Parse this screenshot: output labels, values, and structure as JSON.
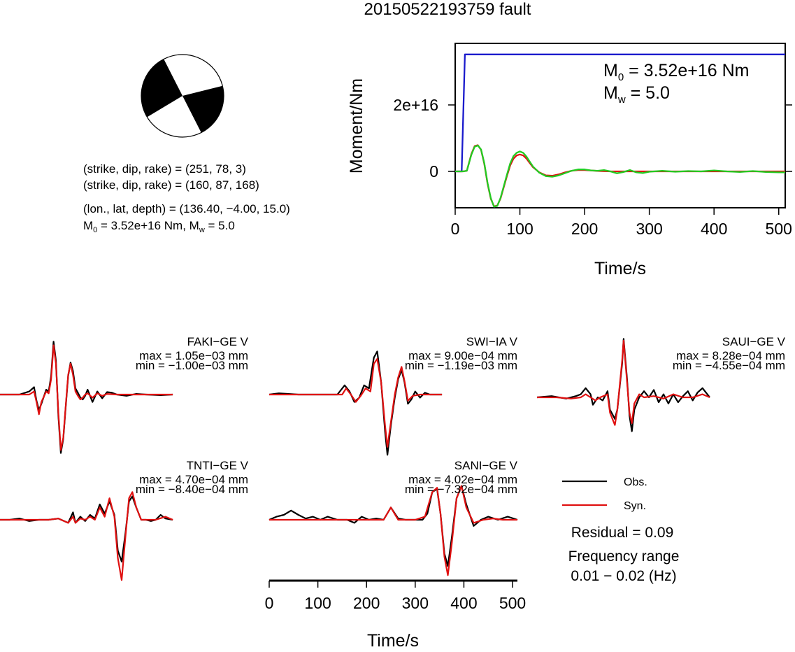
{
  "title": "20150522193759 fault",
  "mechanism": {
    "line1": "(strike, dip, rake) = (251, 78, 3)",
    "line2": "(strike, dip, rake) = (160, 87, 168)",
    "line3": "(lon., lat, depth) = (136.40, −4.00, 15.0)",
    "m0_label": "M",
    "m0_sub": "0",
    "m0_text": " = 3.52e+16 Nm, M",
    "mw_sub": "w",
    "mw_text": " = 5.0"
  },
  "stf": {
    "ylabel": "Moment/Nm",
    "xlabel": "Time/s",
    "m0_main": "M",
    "m0_sub": "0",
    "m0_rest": " = 3.52e+16 Nm",
    "mw_main": "M",
    "mw_sub": "w",
    "mw_rest": " = 5.0"
  },
  "waveforms": {
    "xlabel": "Time/s",
    "stations": [
      {
        "name": "FAKI−GE V",
        "max": "max = 1.05e−03 mm",
        "min": "min = −1.00e−03 mm"
      },
      {
        "name": "SWI−IA V",
        "max": "max = 9.00e−04 mm",
        "min": "min = −1.19e−03 mm"
      },
      {
        "name": "SAUI−GE V",
        "max": "max = 8.28e−04 mm",
        "min": "min = −4.55e−04 mm"
      },
      {
        "name": "TNTI−GE V",
        "max": "max = 4.70e−04 mm",
        "min": "min = −8.40e−04 mm"
      },
      {
        "name": "SANI−GE V",
        "max": "max = 4.02e−04 mm",
        "min": "min = −7.32e−04 mm"
      }
    ]
  },
  "legend": {
    "obs": "Obs.",
    "syn": "Syn.",
    "residual": "Residual = 0.09",
    "freq_title": "Frequency range",
    "freq_value": "0.01 − 0.02 (Hz)"
  },
  "colors": {
    "observed": "#000000",
    "synthetic": "#e01010",
    "moment_cumulative": "#1a1acc",
    "moment_rate_obs": "#e01010",
    "moment_rate_syn": "#22cc22",
    "beachball_fill": "#000000"
  },
  "chart_data": [
    {
      "type": "line",
      "xlabel": "Time/s",
      "ylabel": "Moment/Nm",
      "xlim": [
        0,
        510
      ],
      "x_ticks": [
        0,
        100,
        200,
        300,
        400,
        500
      ],
      "y_ticks": [
        0,
        2e+16
      ],
      "y_tick_labels": [
        "0",
        "2e+16"
      ],
      "grid": false,
      "series": [
        {
          "x": [
            0,
            10,
            15,
            510
          ],
          "y": [
            0,
            0,
            3.52e+16,
            3.52e+16
          ]
        },
        {
          "x": [
            0,
            12,
            18,
            25,
            30,
            35,
            40,
            45,
            50,
            55,
            60,
            65,
            70,
            75,
            80,
            85,
            90,
            95,
            100,
            105,
            110,
            115,
            120,
            130,
            140,
            150,
            160,
            170,
            180,
            190,
            200,
            210,
            220,
            230,
            240,
            250,
            260,
            270,
            280,
            290,
            300,
            320,
            340,
            360,
            380,
            400,
            420,
            440,
            460,
            480,
            500,
            510
          ],
          "y": [
            0,
            0,
            200000000000000.0,
            5000000000000000.0,
            7400000000000000.0,
            7800000000000000.0,
            6600000000000000.0,
            2500000000000000.0,
            -3500000000000000.0,
            -8000000000000000.0,
            -1.06e+16,
            -1.04e+16,
            -8000000000000000.0,
            -4500000000000000.0,
            -1000000000000000.0,
            2400000000000000.0,
            4600000000000000.0,
            5600000000000000.0,
            6000000000000000.0,
            5600000000000000.0,
            4500000000000000.0,
            3000000000000000.0,
            1500000000000000.0,
            -400000000000000.0,
            -1400000000000000.0,
            -1600000000000000.0,
            -1200000000000000.0,
            -500000000000000.0,
            200000000000000.0,
            600000000000000.0,
            600000000000000.0,
            300000000000000.0,
            200000000000000.0,
            400000000000000.0,
            0,
            -600000000000000.0,
            -200000000000000.0,
            400000000000000.0,
            -300000000000000.0,
            -500000000000000.0,
            -100000000000000.0,
            200000000000000.0,
            -100000000000000.0,
            100000000000000.0,
            0,
            300000000000000.0,
            0,
            -200000000000000.0,
            100000000000000.0,
            -200000000000000.0,
            -300000000000000.0,
            -300000000000000.0
          ]
        },
        {
          "x": [
            0,
            12,
            18,
            25,
            30,
            35,
            40,
            45,
            50,
            55,
            60,
            65,
            70,
            75,
            80,
            85,
            90,
            95,
            100,
            105,
            110,
            115,
            120,
            130,
            140,
            150,
            160,
            170,
            180,
            190,
            200,
            220,
            240,
            260,
            280,
            300,
            350,
            400,
            450,
            510
          ],
          "y": [
            0,
            0,
            200000000000000.0,
            5200000000000000.0,
            7600000000000000.0,
            7900000000000000.0,
            6500000000000000.0,
            2300000000000000.0,
            -3700000000000000.0,
            -8200000000000000.0,
            -1.05e+16,
            -1.03e+16,
            -8200000000000000.0,
            -4800000000000000.0,
            -1400000000000000.0,
            1800000000000000.0,
            3800000000000000.0,
            4800000000000000.0,
            5100000000000000.0,
            4800000000000000.0,
            3900000000000000.0,
            2600000000000000.0,
            1300000000000000.0,
            -300000000000000.0,
            -1200000000000000.0,
            -1300000000000000.0,
            -900000000000000.0,
            -300000000000000.0,
            200000000000000.0,
            400000000000000.0,
            400000000000000.0,
            150000000000000.0,
            0,
            0,
            0,
            0,
            0,
            0,
            0,
            0
          ]
        }
      ]
    },
    {
      "type": "line",
      "xlabel": "Time/s",
      "xlim": [
        0,
        510
      ],
      "x_ticks": [
        0,
        100,
        200,
        300,
        400,
        500
      ],
      "panels": [
        {
          "station": "FAKI−GE V",
          "obs_x": [
            0,
            40,
            60,
            70,
            75,
            80,
            85,
            95,
            100,
            105,
            110,
            115,
            120,
            125,
            130,
            135,
            140,
            145,
            150,
            155,
            160,
            165,
            170,
            175,
            180,
            190,
            200,
            210,
            220,
            230,
            240,
            260,
            280,
            300,
            330,
            355
          ],
          "obs_y": [
            0,
            0,
            0.05,
            0.12,
            -0.1,
            -0.25,
            -0.15,
            0.08,
            0.05,
            0.3,
            0.86,
            0.55,
            -0.35,
            -0.95,
            -0.72,
            -0.2,
            0.3,
            0.52,
            0.38,
            0.1,
            0.03,
            -0.05,
            -0.08,
            -0.02,
            0.08,
            -0.12,
            0.05,
            -0.06,
            0.04,
            0.03,
            0.0,
            -0.02,
            0.01,
            0.0,
            -0.01,
            0.0
          ],
          "syn_x": [
            0,
            40,
            60,
            70,
            75,
            80,
            85,
            95,
            100,
            105,
            110,
            115,
            120,
            125,
            130,
            135,
            140,
            145,
            150,
            155,
            160,
            165,
            170,
            175,
            180,
            190,
            200,
            210,
            220,
            240,
            260,
            290,
            320,
            355
          ],
          "syn_y": [
            0,
            0,
            0.0,
            0.05,
            -0.12,
            -0.32,
            -0.12,
            0.05,
            0.02,
            0.25,
            0.8,
            0.5,
            -0.3,
            -0.9,
            -0.7,
            -0.18,
            0.32,
            0.5,
            0.32,
            0.05,
            -0.02,
            -0.08,
            -0.05,
            0.0,
            0.02,
            -0.05,
            0.02,
            -0.02,
            0.01,
            0.0,
            0.0,
            0.0,
            0.0,
            0.0
          ]
        },
        {
          "station": "SWI−IA V",
          "obs_x": [
            0,
            20,
            60,
            100,
            140,
            155,
            165,
            175,
            185,
            195,
            205,
            215,
            222,
            230,
            238,
            243,
            250,
            258,
            265,
            272,
            278,
            285,
            292,
            300,
            310,
            320,
            330,
            340,
            355
          ],
          "obs_y": [
            0,
            0.02,
            0.0,
            0.0,
            0.0,
            0.15,
            0.05,
            -0.12,
            -0.05,
            0.15,
            0.1,
            0.6,
            0.7,
            0.2,
            -0.6,
            -0.98,
            -0.5,
            -0.05,
            0.25,
            0.4,
            0.2,
            -0.15,
            -0.08,
            0.05,
            -0.05,
            0.03,
            0.0,
            0.0,
            0.0
          ],
          "syn_x": [
            0,
            40,
            80,
            120,
            150,
            158,
            168,
            178,
            188,
            198,
            208,
            215,
            222,
            230,
            238,
            243,
            250,
            258,
            265,
            272,
            278,
            285,
            295,
            310,
            330,
            355
          ],
          "syn_y": [
            0,
            0.0,
            0.0,
            0.0,
            0.0,
            0.1,
            0.0,
            -0.12,
            -0.02,
            0.1,
            0.05,
            0.5,
            0.58,
            0.2,
            -0.5,
            -0.85,
            -0.45,
            0.0,
            0.28,
            0.45,
            0.22,
            -0.1,
            -0.02,
            0.0,
            0.0,
            0.0
          ]
        },
        {
          "station": "SAUI−GE V",
          "obs_x": [
            0,
            30,
            60,
            80,
            90,
            100,
            110,
            115,
            125,
            135,
            145,
            150,
            160,
            165,
            175,
            178,
            185,
            190,
            195,
            200,
            210,
            220,
            230,
            240,
            250,
            260,
            270,
            280,
            290,
            300,
            310,
            320,
            330,
            340,
            350,
            355
          ],
          "obs_y": [
            0,
            0.02,
            -0.02,
            0.02,
            0.05,
            0.15,
            0.05,
            -0.12,
            0.0,
            -0.05,
            0.1,
            -0.2,
            -0.35,
            -0.2,
            0.55,
            0.95,
            0.3,
            -0.3,
            -0.55,
            -0.2,
            0.0,
            0.1,
            0.0,
            0.12,
            -0.08,
            0.05,
            -0.1,
            0.05,
            -0.08,
            0.02,
            0.1,
            -0.05,
            0.08,
            0.15,
            0.05,
            0.0
          ],
          "syn_x": [
            0,
            40,
            70,
            90,
            100,
            110,
            120,
            130,
            145,
            150,
            160,
            165,
            175,
            178,
            185,
            190,
            195,
            200,
            210,
            220,
            240,
            260,
            280,
            300,
            320,
            340,
            355
          ],
          "syn_y": [
            0,
            0.0,
            -0.02,
            0.0,
            0.05,
            0.0,
            -0.05,
            0.0,
            0.05,
            -0.25,
            -0.45,
            -0.2,
            0.6,
            0.92,
            0.25,
            -0.25,
            -0.42,
            -0.1,
            0.05,
            0.0,
            0.02,
            -0.02,
            0.05,
            0.0,
            0.0,
            0.05,
            0.0
          ]
        },
        {
          "station": "TNTI−GE V",
          "obs_x": [
            0,
            20,
            40,
            60,
            80,
            100,
            120,
            140,
            150,
            155,
            165,
            175,
            185,
            195,
            205,
            215,
            225,
            235,
            242,
            250,
            258,
            265,
            272,
            280,
            290,
            300,
            310,
            320,
            330,
            340,
            355
          ],
          "obs_y": [
            0,
            0.0,
            0.02,
            -0.02,
            0.0,
            0.0,
            0.02,
            -0.05,
            0.12,
            -0.05,
            0.05,
            -0.02,
            0.08,
            0.02,
            0.25,
            0.1,
            0.3,
            0.08,
            -0.5,
            -0.68,
            -0.2,
            0.3,
            0.38,
            0.2,
            0.0,
            0.0,
            -0.02,
            0.0,
            0.08,
            0.02,
            0.0
          ],
          "syn_x": [
            0,
            20,
            40,
            60,
            80,
            100,
            120,
            140,
            150,
            155,
            165,
            175,
            185,
            195,
            205,
            215,
            225,
            235,
            242,
            250,
            258,
            265,
            272,
            280,
            290,
            300,
            320,
            340,
            355
          ],
          "syn_y": [
            0,
            0.0,
            0.0,
            0.0,
            0.0,
            0.0,
            0.02,
            -0.05,
            0.05,
            -0.05,
            0.02,
            0.0,
            0.05,
            0.0,
            0.2,
            0.05,
            0.35,
            0.05,
            -0.62,
            -0.98,
            -0.25,
            0.35,
            0.45,
            0.2,
            0.0,
            0.0,
            0.0,
            0.05,
            0.0
          ]
        },
        {
          "station": "SANI−GE V",
          "obs_x": [
            0,
            15,
            30,
            45,
            60,
            75,
            90,
            105,
            120,
            140,
            160,
            175,
            190,
            205,
            220,
            235,
            250,
            265,
            280,
            300,
            315,
            325,
            335,
            345,
            352,
            360,
            367,
            375,
            385,
            395,
            405,
            420,
            435,
            450,
            470,
            490,
            510
          ],
          "obs_y": [
            0,
            0.05,
            0.08,
            0.15,
            0.08,
            0.02,
            0.05,
            0.0,
            0.05,
            0.0,
            0.0,
            -0.05,
            0.05,
            0.0,
            0.02,
            0.0,
            0.2,
            0.02,
            0.0,
            0.0,
            0.0,
            0.1,
            0.45,
            0.5,
            0.1,
            -0.55,
            -0.75,
            -0.3,
            0.35,
            0.55,
            0.25,
            -0.1,
            0.0,
            0.05,
            0.0,
            0.05,
            0.0
          ],
          "syn_x": [
            0,
            30,
            60,
            90,
            120,
            150,
            180,
            205,
            220,
            235,
            250,
            265,
            280,
            300,
            320,
            335,
            345,
            352,
            360,
            367,
            375,
            385,
            395,
            405,
            420,
            440,
            460,
            480,
            510
          ],
          "syn_y": [
            0,
            0.0,
            0.0,
            0.0,
            0.0,
            0.0,
            0.0,
            0.0,
            0.0,
            0.0,
            0.2,
            0.0,
            0.0,
            0.0,
            0.05,
            0.45,
            0.52,
            0.1,
            -0.6,
            -0.9,
            -0.4,
            0.35,
            0.55,
            0.2,
            -0.05,
            0.0,
            0.02,
            0.0,
            0.0
          ]
        }
      ]
    }
  ]
}
